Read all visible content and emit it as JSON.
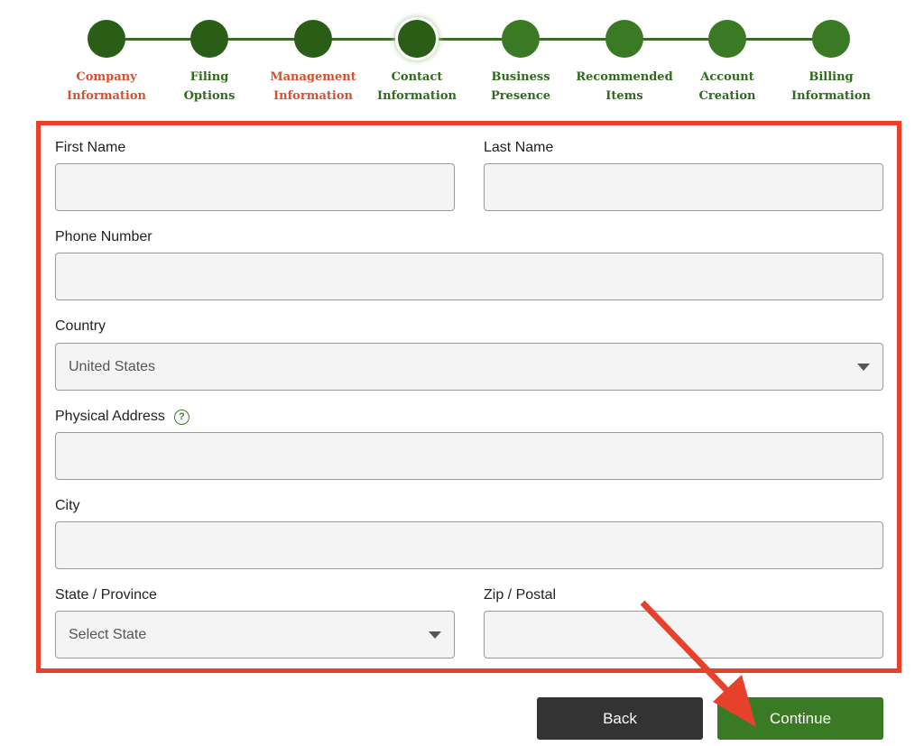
{
  "steps": [
    {
      "line1": "Company",
      "line2": "Information",
      "state": "done-error"
    },
    {
      "line1": "Filing",
      "line2": "Options",
      "state": "done"
    },
    {
      "line1": "Management",
      "line2": "Information",
      "state": "done-error"
    },
    {
      "line1": "Contact",
      "line2": "Information",
      "state": "current"
    },
    {
      "line1": "Business",
      "line2": "Presence",
      "state": "upcoming"
    },
    {
      "line1": "Recommended",
      "line2": "Items",
      "state": "upcoming"
    },
    {
      "line1": "Account",
      "line2": "Creation",
      "state": "upcoming"
    },
    {
      "line1": "Billing",
      "line2": "Information",
      "state": "upcoming"
    }
  ],
  "form": {
    "first_name": {
      "label": "First Name",
      "value": ""
    },
    "last_name": {
      "label": "Last Name",
      "value": ""
    },
    "phone": {
      "label": "Phone Number",
      "value": ""
    },
    "country": {
      "label": "Country",
      "value": "United States"
    },
    "address": {
      "label": "Physical Address",
      "help_icon": "?",
      "value": ""
    },
    "city": {
      "label": "City",
      "value": ""
    },
    "state": {
      "label": "State / Province",
      "placeholder": "Select State"
    },
    "zip": {
      "label": "Zip / Postal",
      "value": ""
    }
  },
  "buttons": {
    "back": "Back",
    "continue": "Continue"
  },
  "colors": {
    "primary_green": "#2a5e17",
    "button_green": "#3b7a25",
    "error_red": "#d6502f",
    "highlight_red": "#e8412b",
    "back_button": "#333333"
  }
}
